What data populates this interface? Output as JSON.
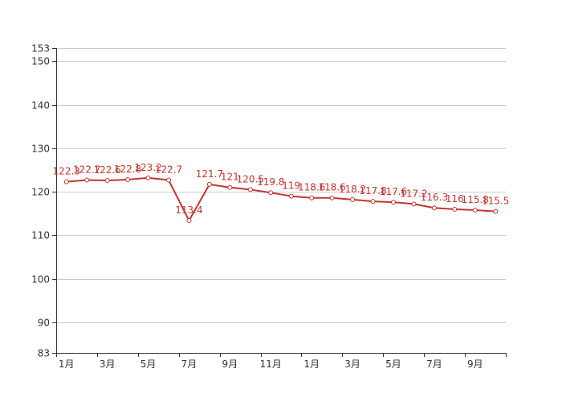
{
  "chart_data": {
    "type": "line",
    "title": "",
    "xlabel": "",
    "ylabel": "",
    "ylim": [
      83,
      153
    ],
    "y_ticks": [
      83,
      90,
      100,
      110,
      120,
      130,
      140,
      150,
      153
    ],
    "x_tick_labels": [
      "1月",
      "3月",
      "5月",
      "7月",
      "9月",
      "11月",
      "1月",
      "3月",
      "5月",
      "7月",
      "9月"
    ],
    "grid": true,
    "series": [
      {
        "values": [
          122.3,
          122.7,
          122.6,
          122.8,
          123.2,
          122.7,
          113.4,
          121.7,
          121,
          120.5,
          119.8,
          119,
          118.6,
          118.6,
          118.2,
          117.8,
          117.6,
          117.2,
          116.3,
          116,
          115.8,
          115.5
        ],
        "color": "#c23531"
      }
    ]
  }
}
